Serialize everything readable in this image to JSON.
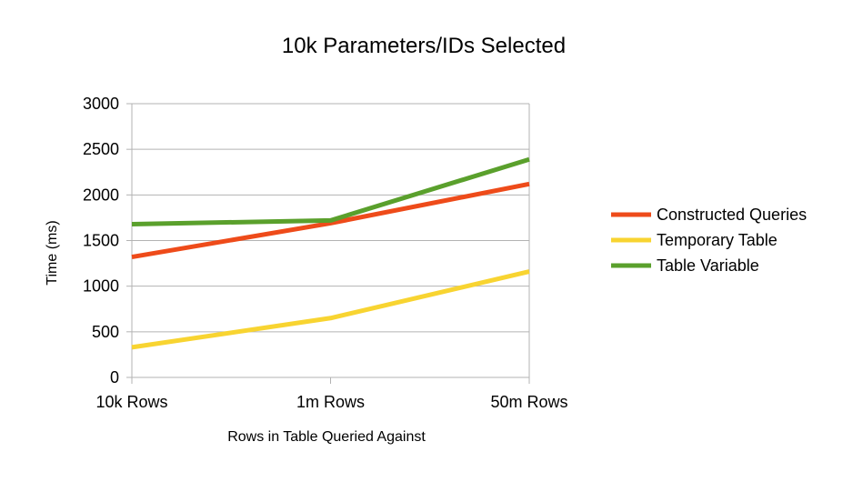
{
  "chart_data": {
    "type": "line",
    "title": "10k Parameters/IDs Selected",
    "xlabel": "Rows in Table Queried Against",
    "ylabel": "Time (ms)",
    "categories": [
      "10k Rows",
      "1m Rows",
      "50m Rows"
    ],
    "ylim": [
      0,
      3000
    ],
    "yticks": [
      0,
      500,
      1000,
      1500,
      2000,
      2500,
      3000
    ],
    "grid": true,
    "legend_position": "right",
    "series": [
      {
        "name": "Constructed Queries",
        "color": "#ee4b1a",
        "values": [
          1320,
          1690,
          2120
        ]
      },
      {
        "name": "Temporary Table",
        "color": "#f8d431",
        "values": [
          330,
          650,
          1160
        ]
      },
      {
        "name": "Table Variable",
        "color": "#5aa02c",
        "values": [
          1680,
          1720,
          2390
        ]
      }
    ]
  }
}
